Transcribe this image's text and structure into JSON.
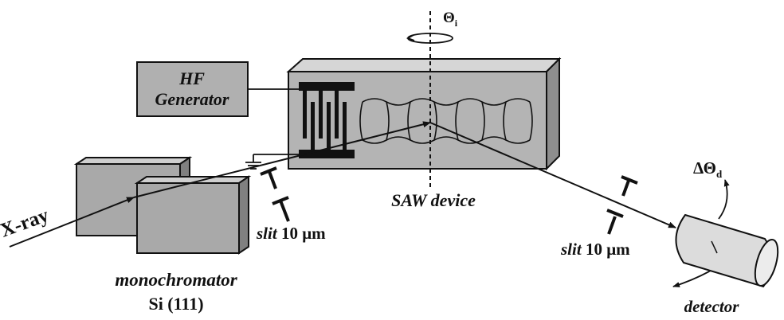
{
  "labels": {
    "theta_i": "Θ",
    "theta_i_sub": "i",
    "hf_line1": "HF",
    "hf_line2": "Generator",
    "xray": "X-ray",
    "saw": "SAW device",
    "slit_left_word": "slit",
    "slit_left_value": "10 μm",
    "slit_right_word": "slit",
    "slit_right_value": "10 μm",
    "mono_line1": "monochromator",
    "mono_line2": "Si (111)",
    "delta_theta": "ΔΘ",
    "delta_theta_sub": "d",
    "detector": "detector"
  },
  "colors": {
    "box_gray": "#a9a9a9",
    "box_top": "#cfcfcf",
    "box_side": "#808080",
    "saw_face": "#b4b4b4",
    "saw_top": "#d6d6d6",
    "saw_side": "#8e8e8e",
    "hf_fill": "#b0b0b0",
    "ink": "#111111"
  }
}
